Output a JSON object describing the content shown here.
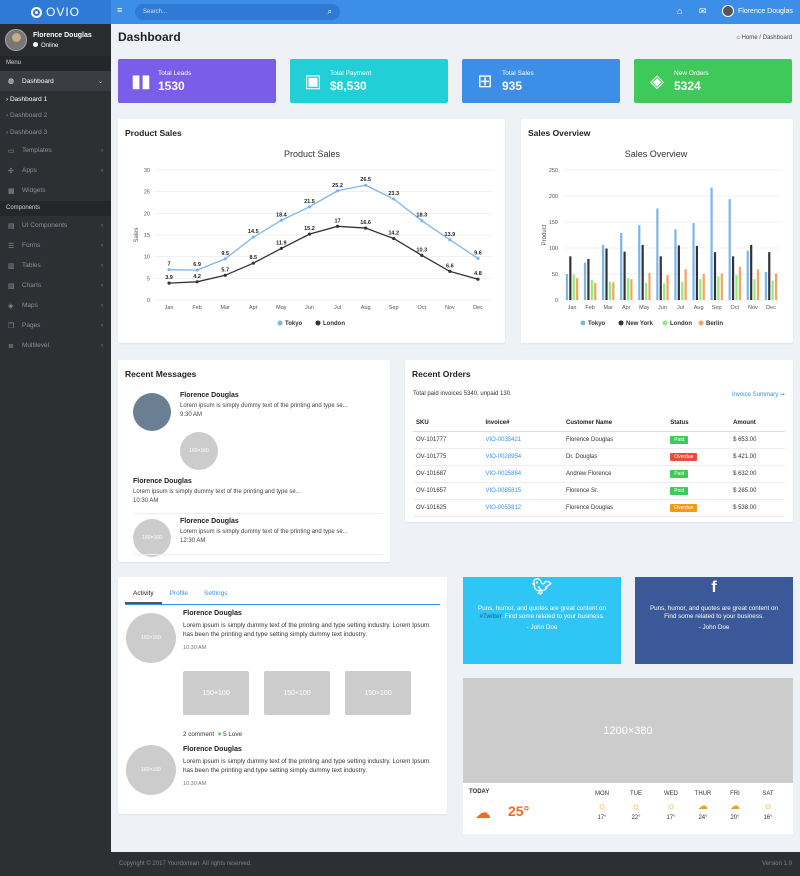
{
  "topbar": {
    "logo": "OVIO",
    "search_placeholder": "Search...",
    "user": "Florence Douglas"
  },
  "sidebar": {
    "name": "Florence Douglas",
    "status": "Online",
    "menu_heading": "Menu",
    "components_heading": "Components",
    "dashboard": "Dashboard",
    "subs": [
      "Dashboard 1",
      "Dashboard 2",
      "Dashboard 3"
    ],
    "items": [
      "Templates",
      "Apps",
      "Widgets"
    ],
    "comp_items": [
      "UI Components",
      "Forms",
      "Tables",
      "Charts",
      "Maps",
      "Pages",
      "Multilevel"
    ]
  },
  "page": {
    "title": "Dashboard",
    "crumb_home": "Home",
    "crumb_current": "Dashboard"
  },
  "stats": [
    {
      "label": "Total Leads",
      "value": "1530",
      "color": "#7a5de8"
    },
    {
      "label": "Total Payment",
      "value": "$8,530",
      "color": "#22cfd6"
    },
    {
      "label": "Total Sales",
      "value": "935",
      "color": "#3d8ee6"
    },
    {
      "label": "New Orders",
      "value": "5324",
      "color": "#3fc95a"
    }
  ],
  "product_sales": {
    "card_title": "Product Sales"
  },
  "sales_overview": {
    "card_title": "Sales Overview"
  },
  "chart_data": [
    {
      "type": "line",
      "title": "Product Sales",
      "ylabel": "Sales",
      "ylim": [
        0,
        30
      ],
      "yticks": [
        0,
        5,
        10,
        15,
        20,
        25,
        30
      ],
      "categories": [
        "Jan",
        "Feb",
        "Mar",
        "Apr",
        "May",
        "Jun",
        "Jul",
        "Aug",
        "Sep",
        "Oct",
        "Nov",
        "Dec"
      ],
      "series": [
        {
          "name": "Tokyo",
          "color": "#7cb5ec",
          "values": [
            7,
            6.9,
            9.5,
            14.5,
            18.4,
            21.5,
            25.2,
            26.5,
            23.3,
            18.3,
            13.9,
            9.6
          ]
        },
        {
          "name": "London",
          "color": "#333333",
          "values": [
            3.9,
            4.2,
            5.7,
            8.5,
            11.9,
            15.2,
            17,
            16.6,
            14.2,
            10.3,
            6.6,
            4.8
          ]
        }
      ],
      "legend": "bottom",
      "grid": true
    },
    {
      "type": "bar",
      "title": "Sales Overview",
      "ylabel": "Product",
      "ylim": [
        0,
        250
      ],
      "yticks": [
        0,
        50,
        100,
        150,
        200,
        250
      ],
      "categories": [
        "Jan",
        "Feb",
        "Mar",
        "Apr",
        "May",
        "Jun",
        "Jul",
        "Aug",
        "Sep",
        "Oct",
        "Nov",
        "Dec"
      ],
      "series": [
        {
          "name": "Tokyo",
          "color": "#7cb5ec",
          "values": [
            50,
            72,
            106,
            129,
            144,
            176,
            136,
            148,
            216,
            194,
            95,
            54
          ]
        },
        {
          "name": "New York",
          "color": "#333333",
          "values": [
            84,
            79,
            99,
            93,
            106,
            84,
            105,
            104,
            92,
            84,
            106,
            92
          ]
        },
        {
          "name": "London",
          "color": "#90ed7d",
          "values": [
            49,
            39,
            35,
            42,
            33,
            32,
            35,
            40,
            45,
            48,
            40,
            37
          ]
        },
        {
          "name": "Berlin",
          "color": "#f7a35c",
          "values": [
            42,
            33,
            34,
            40,
            52,
            48,
            59,
            50,
            51,
            64,
            59,
            51
          ]
        }
      ],
      "legend": "bottom",
      "grid": true
    }
  ],
  "messages": {
    "title": "Recent Messages",
    "items": [
      {
        "name": "Florence Douglas",
        "text": "Lorem ipsum is simply dummy text of the printing and type se...",
        "time": "9:30 AM"
      },
      {
        "name": "Florence Douglas",
        "text": "Lorem ipsum is simply dummy text of the printing and type se...",
        "time": "10:30 AM"
      },
      {
        "name": "Florence Douglas",
        "text": "Lorem ipsum is simply dummy text of the printing and type se...",
        "time": "12:30 AM"
      }
    ],
    "placeholder": "160×160"
  },
  "orders": {
    "title": "Recent Orders",
    "summary": "Total paid invoices 5340, unpaid 130.",
    "summary_link": "Invoice Summary ➞",
    "headers": [
      "SKU",
      "Invoice#",
      "Customer Name",
      "Status",
      "Amount"
    ],
    "rows": [
      [
        "OV-101777",
        "VIO-0035421",
        "Florence Douglas",
        "Paid",
        "$ 653.00"
      ],
      [
        "OV-101775",
        "VIO-0028954",
        "Dr. Douglas",
        "Overdue",
        "$ 421.00"
      ],
      [
        "OV-101687",
        "VIO-0025884",
        "Andrew Florence",
        "Paid",
        "$ 632.00"
      ],
      [
        "OV-101657",
        "VIO-0085815",
        "Florence Sr.",
        "Paid",
        "$ 285.00"
      ],
      [
        "OV-101625",
        "VIO-0053812",
        "Florence Douglas",
        "Overdue",
        "$ 538.00"
      ]
    ],
    "paid_color": "#3fc95a",
    "overdue_red": "#e84c3d",
    "overdue_orange": "#f39c12"
  },
  "activity": {
    "tabs": [
      "Activity",
      "Profile",
      "Settings"
    ],
    "name": "Florence Douglas",
    "text": "Lorem ipsum is simply dummy text of the printing and type setting industry. Lorem Ipsum has been the printing and type setting simply dummy text industry.",
    "time": "10:30 AM",
    "thumb": "150×100",
    "avatar": "160×160",
    "comments": "2 comment",
    "love": "5 Love"
  },
  "twitter": {
    "text_a": "Puns, humor, and quotes are great content on ",
    "handle": "#Twitter",
    "text_b": ". Find some related to your business.",
    "author": "- John Doe",
    "color": "#2fc5f4"
  },
  "facebook": {
    "text": "Puns, humor, and quotes are great content on Find some related to your business.",
    "author": "- John Doe",
    "color": "#3b5998"
  },
  "banner": "1200×380",
  "weather": {
    "today": "TODAY",
    "temp": "25°",
    "days": [
      {
        "d": "MON",
        "t": "17°"
      },
      {
        "d": "TUE",
        "t": "22°"
      },
      {
        "d": "WED",
        "t": "17°"
      },
      {
        "d": "THUR",
        "t": "24°"
      },
      {
        "d": "FRI",
        "t": "20°"
      },
      {
        "d": "SAT",
        "t": "16°"
      }
    ]
  },
  "footer": {
    "copy": "Copyright © 2017 Yourdomian. All rights reserved.",
    "version": "Version 1.0"
  }
}
